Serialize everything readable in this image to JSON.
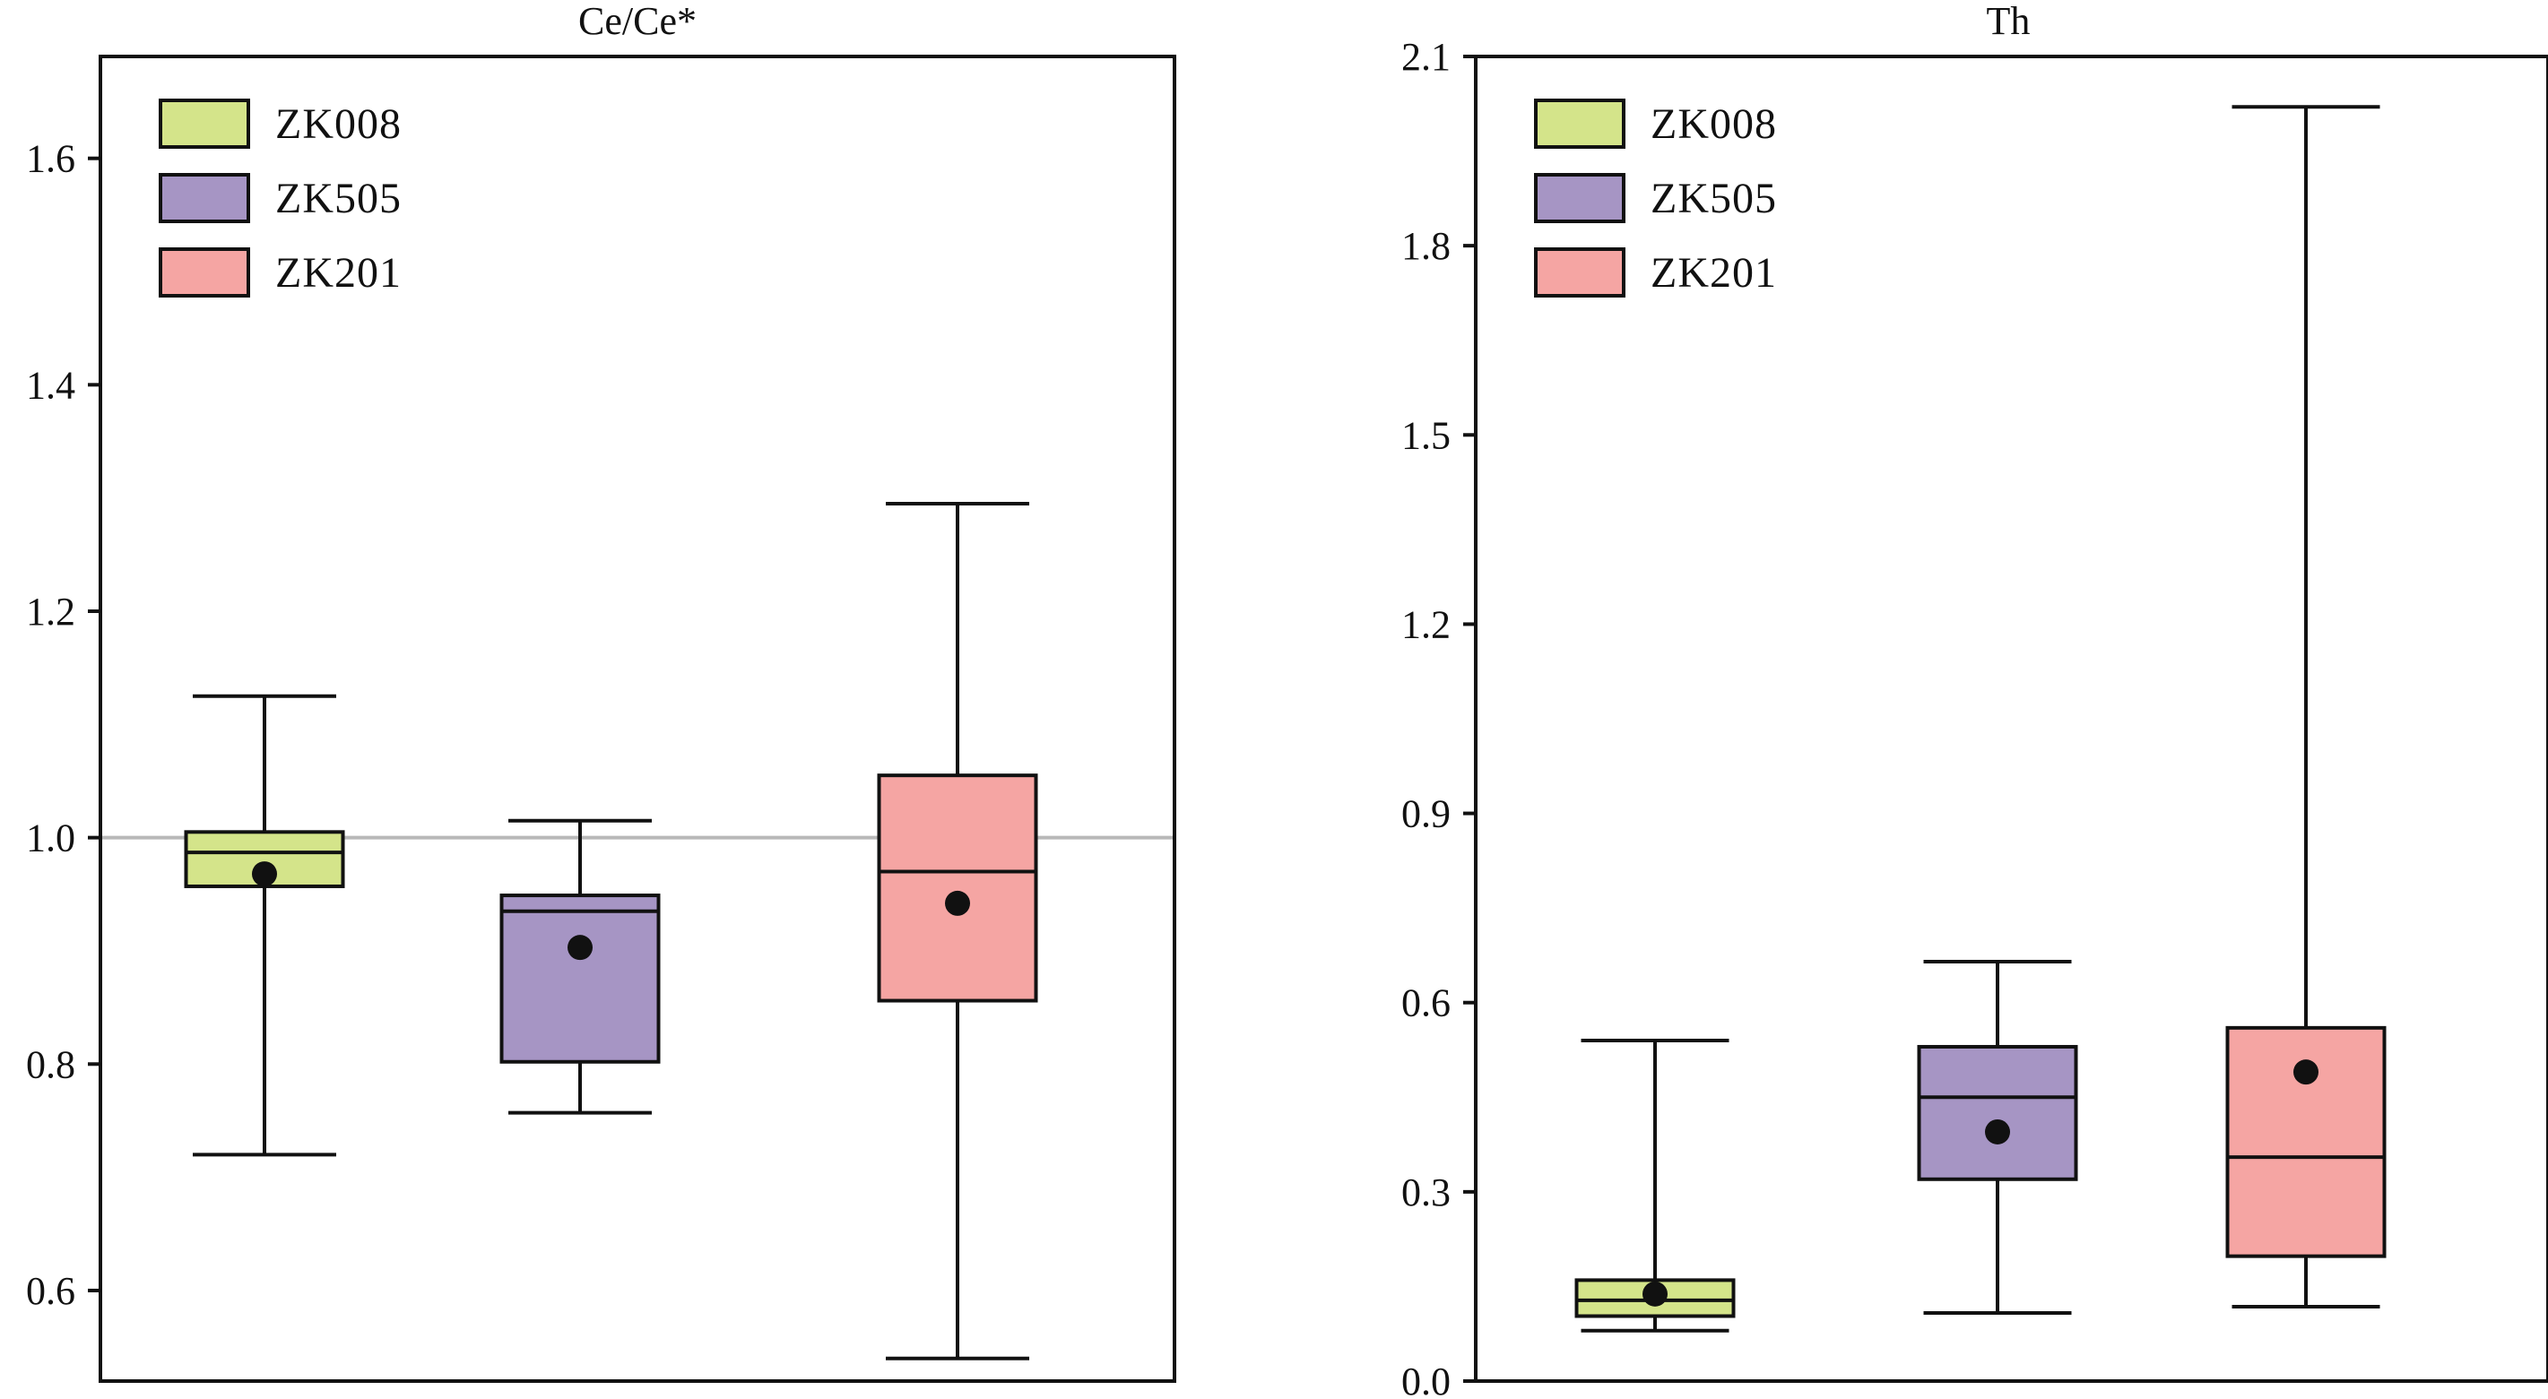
{
  "chart_data": [
    {
      "type": "box",
      "title": "Ce/Ce*",
      "ylim": [
        0.52,
        1.69
      ],
      "yticks": [
        0.6,
        0.8,
        1.0,
        1.2,
        1.4,
        1.6
      ],
      "ytick_labels": [
        "0.6",
        "0.8",
        "1.0",
        "1.2",
        "1.4",
        "1.6"
      ],
      "reference_line": 1.0,
      "legend": {
        "placement": "top-left",
        "entries": [
          "ZK008",
          "ZK505",
          "ZK201"
        ]
      },
      "boxes": [
        {
          "name": "ZK008",
          "color": "#D4E48A",
          "whisker_low": 0.72,
          "q1": 0.957,
          "median": 0.987,
          "q3": 1.005,
          "whisker_high": 1.125,
          "mean": 0.968
        },
        {
          "name": "ZK505",
          "color": "#A695C4",
          "whisker_low": 0.757,
          "q1": 0.802,
          "median": 0.935,
          "q3": 0.949,
          "whisker_high": 1.015,
          "mean": 0.903
        },
        {
          "name": "ZK201",
          "color": "#F5A5A3",
          "whisker_low": 0.54,
          "q1": 0.856,
          "median": 0.97,
          "q3": 1.055,
          "whisker_high": 1.295,
          "mean": 0.942
        }
      ]
    },
    {
      "type": "box",
      "title": "Th",
      "ylim": [
        0.0,
        2.1
      ],
      "yticks": [
        0.0,
        0.3,
        0.6,
        0.9,
        1.2,
        1.5,
        1.8,
        2.1
      ],
      "ytick_labels": [
        "0.0",
        "0.3",
        "0.6",
        "0.9",
        "1.2",
        "1.5",
        "1.8",
        "2.1"
      ],
      "legend": {
        "placement": "top-left",
        "entries": [
          "ZK008",
          "ZK505",
          "ZK201"
        ]
      },
      "boxes": [
        {
          "name": "ZK008",
          "color": "#D4E48A",
          "whisker_low": 0.08,
          "q1": 0.103,
          "median": 0.128,
          "q3": 0.16,
          "whisker_high": 0.54,
          "mean": 0.138
        },
        {
          "name": "ZK505",
          "color": "#A695C4",
          "whisker_low": 0.108,
          "q1": 0.32,
          "median": 0.45,
          "q3": 0.53,
          "whisker_high": 0.665,
          "mean": 0.395
        },
        {
          "name": "ZK201",
          "color": "#F5A5A3",
          "whisker_low": 0.118,
          "q1": 0.198,
          "median": 0.355,
          "q3": 0.56,
          "whisker_high": 2.02,
          "mean": 0.49
        }
      ]
    }
  ]
}
